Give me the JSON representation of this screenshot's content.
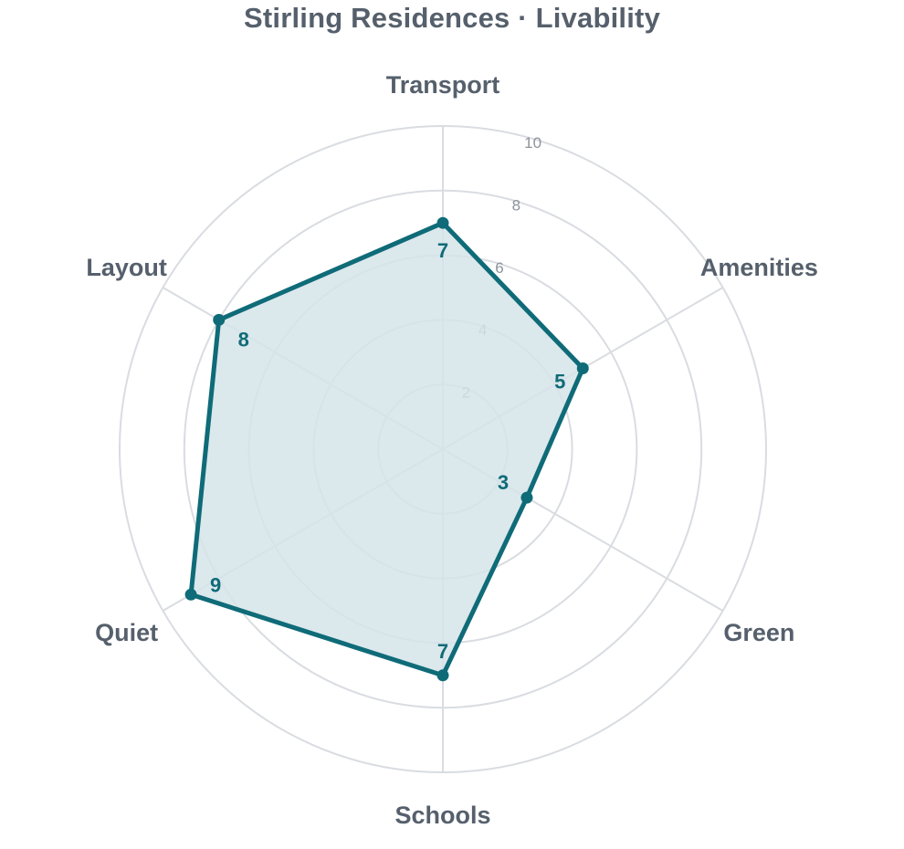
{
  "title": "Stirling Residences · Livability",
  "colors": {
    "series": "#0f6b78",
    "fill": "#d5e4e9",
    "grid": "#d9dce1",
    "axis_text": "#56606c",
    "tick_text": "#8c939c"
  },
  "chart_data": {
    "type": "radar",
    "title": "Stirling Residences · Livability",
    "axes": [
      "Transport",
      "Amenities",
      "Green",
      "Schools",
      "Quiet",
      "Layout"
    ],
    "rlim": [
      0,
      10
    ],
    "ticks": [
      2,
      4,
      6,
      8,
      10
    ],
    "grid": true,
    "series": [
      {
        "values": [
          7,
          5,
          3,
          7,
          9,
          8
        ],
        "data_labels": [
          "7",
          "5",
          "3",
          "7",
          "9",
          "8"
        ]
      }
    ]
  }
}
